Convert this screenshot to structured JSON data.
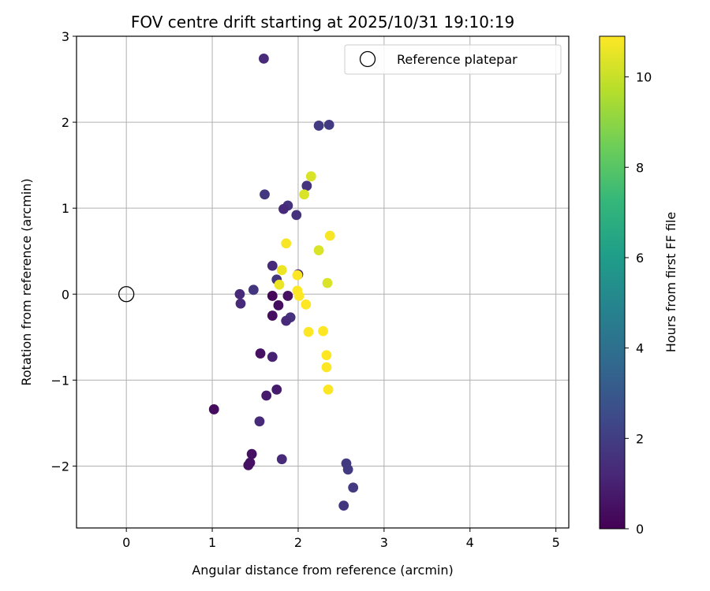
{
  "chart_data": {
    "type": "scatter",
    "title": "FOV centre drift starting at 2025/10/31 19:10:19",
    "xlabel": "Angular distance from reference (arcmin)",
    "ylabel": "Rotation from reference (arcmin)",
    "xlim": [
      -0.58,
      5.15
    ],
    "ylim": [
      -2.72,
      3.0
    ],
    "xticks": [
      0,
      1,
      2,
      3,
      4,
      5
    ],
    "yticks": [
      -2,
      -1,
      0,
      1,
      2,
      3
    ],
    "xtick_labels": [
      "0",
      "1",
      "2",
      "3",
      "4",
      "5"
    ],
    "ytick_labels": [
      "−2",
      "−1",
      "0",
      "1",
      "2",
      "3"
    ],
    "grid": true,
    "legend": {
      "label": "Reference platepar",
      "position": "top-right",
      "marker": "open-circle"
    },
    "reference_point": {
      "x": 0,
      "y": 0
    },
    "colorbar": {
      "label": "Hours from first FF file",
      "min": 0,
      "max": 10.9,
      "ticks": [
        0,
        2,
        4,
        6,
        8,
        10
      ],
      "tick_labels": [
        "0",
        "2",
        "4",
        "6",
        "8",
        "10"
      ],
      "colormap": "viridis",
      "colormap_stops": [
        "#440154",
        "#482878",
        "#3e4989",
        "#31688e",
        "#26828e",
        "#1f9e89",
        "#35b779",
        "#6ece58",
        "#b5de2b",
        "#fde725"
      ]
    },
    "points": [
      {
        "x": 1.6,
        "y": 2.74,
        "c": 1.3
      },
      {
        "x": 2.24,
        "y": 1.96,
        "c": 1.9
      },
      {
        "x": 2.36,
        "y": 1.97,
        "c": 1.9
      },
      {
        "x": 2.15,
        "y": 1.37,
        "c": 10.3
      },
      {
        "x": 2.1,
        "y": 1.26,
        "c": 1.6
      },
      {
        "x": 2.07,
        "y": 1.16,
        "c": 10.3
      },
      {
        "x": 1.61,
        "y": 1.16,
        "c": 1.8
      },
      {
        "x": 1.88,
        "y": 1.03,
        "c": 1.6
      },
      {
        "x": 1.83,
        "y": 0.99,
        "c": 1.3
      },
      {
        "x": 1.98,
        "y": 0.92,
        "c": 1.6
      },
      {
        "x": 2.37,
        "y": 0.68,
        "c": 10.8
      },
      {
        "x": 1.86,
        "y": 0.59,
        "c": 10.8
      },
      {
        "x": 2.24,
        "y": 0.51,
        "c": 10.3
      },
      {
        "x": 1.7,
        "y": 0.33,
        "c": 1.3
      },
      {
        "x": 1.81,
        "y": 0.28,
        "c": 10.6
      },
      {
        "x": 2.0,
        "y": 0.23,
        "c": 1.3
      },
      {
        "x": 1.99,
        "y": 0.22,
        "c": 10.9
      },
      {
        "x": 1.75,
        "y": 0.17,
        "c": 1.7
      },
      {
        "x": 2.34,
        "y": 0.13,
        "c": 10.3
      },
      {
        "x": 1.78,
        "y": 0.11,
        "c": 10.6
      },
      {
        "x": 1.48,
        "y": 0.05,
        "c": 1.7
      },
      {
        "x": 1.99,
        "y": 0.04,
        "c": 10.9
      },
      {
        "x": 1.32,
        "y": 0.0,
        "c": 1.3
      },
      {
        "x": 1.7,
        "y": -0.02,
        "c": 0.2
      },
      {
        "x": 1.88,
        "y": -0.02,
        "c": 0.5
      },
      {
        "x": 2.01,
        "y": -0.02,
        "c": 10.9
      },
      {
        "x": 1.33,
        "y": -0.11,
        "c": 1.3
      },
      {
        "x": 1.77,
        "y": -0.13,
        "c": 0.4
      },
      {
        "x": 2.09,
        "y": -0.12,
        "c": 10.9
      },
      {
        "x": 1.7,
        "y": -0.25,
        "c": 0.4
      },
      {
        "x": 1.91,
        "y": -0.27,
        "c": 1.6
      },
      {
        "x": 1.86,
        "y": -0.31,
        "c": 1.3
      },
      {
        "x": 2.29,
        "y": -0.43,
        "c": 10.9
      },
      {
        "x": 2.12,
        "y": -0.44,
        "c": 10.9
      },
      {
        "x": 1.56,
        "y": -0.69,
        "c": 0.5
      },
      {
        "x": 2.33,
        "y": -0.71,
        "c": 10.9
      },
      {
        "x": 1.7,
        "y": -0.73,
        "c": 1.0
      },
      {
        "x": 2.33,
        "y": -0.85,
        "c": 10.9
      },
      {
        "x": 2.35,
        "y": -1.11,
        "c": 10.9
      },
      {
        "x": 1.75,
        "y": -1.11,
        "c": 0.8
      },
      {
        "x": 1.63,
        "y": -1.18,
        "c": 0.8
      },
      {
        "x": 1.02,
        "y": -1.34,
        "c": 0.3
      },
      {
        "x": 1.55,
        "y": -1.48,
        "c": 1.3
      },
      {
        "x": 1.46,
        "y": -1.86,
        "c": 0.5
      },
      {
        "x": 1.81,
        "y": -1.92,
        "c": 1.3
      },
      {
        "x": 1.44,
        "y": -1.96,
        "c": 0.5
      },
      {
        "x": 1.42,
        "y": -1.99,
        "c": 0.5
      },
      {
        "x": 2.56,
        "y": -1.97,
        "c": 1.9
      },
      {
        "x": 2.58,
        "y": -2.04,
        "c": 1.9
      },
      {
        "x": 2.64,
        "y": -2.25,
        "c": 1.9
      },
      {
        "x": 2.53,
        "y": -2.46,
        "c": 1.7
      }
    ]
  }
}
